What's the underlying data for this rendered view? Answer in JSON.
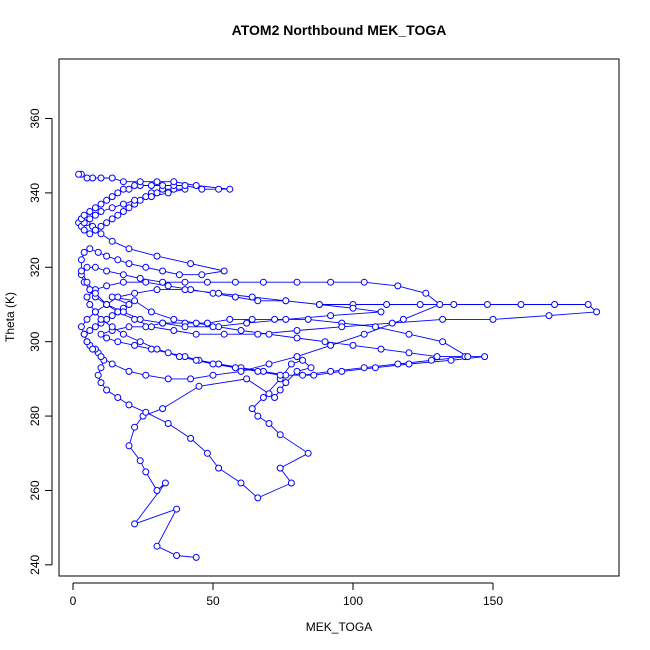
{
  "chart_data": {
    "type": "scatter",
    "title": "ATOM2 Northbound MEK_TOGA",
    "xlabel": "MEK_TOGA",
    "ylabel": "Theta (K)",
    "xlim": [
      -5,
      195
    ],
    "ylim": [
      237,
      376
    ],
    "xticks": [
      0,
      50,
      100,
      150
    ],
    "yticks": [
      240,
      260,
      280,
      300,
      320,
      340,
      360
    ],
    "grid": false,
    "legend": "none",
    "color": "#0000ff",
    "connected": true,
    "series": [
      {
        "x": [
          44,
          37,
          30,
          37,
          22,
          33,
          30,
          26,
          24,
          20,
          22,
          25,
          32,
          45,
          62,
          70,
          72,
          74,
          76,
          80,
          85,
          82,
          78,
          74,
          68,
          64,
          66,
          70,
          74,
          84,
          74,
          78,
          66,
          60,
          52,
          48,
          42,
          34,
          26,
          20,
          16,
          12,
          10,
          9,
          10,
          11,
          9,
          8,
          6,
          5,
          4,
          6,
          8,
          10,
          12,
          14,
          16,
          18,
          20,
          14,
          22,
          28,
          36,
          44,
          52,
          60,
          70,
          80,
          90,
          100,
          110,
          120,
          130,
          140,
          147,
          135,
          120,
          108,
          96,
          86,
          76,
          68,
          60,
          52,
          45,
          40,
          34,
          28,
          22,
          16,
          12,
          10,
          14,
          20,
          26,
          32,
          40,
          48,
          56,
          64,
          72,
          84,
          96,
          108,
          120,
          132,
          141,
          128,
          116,
          104,
          92,
          82,
          74,
          66,
          58,
          50,
          44,
          38,
          30,
          24,
          18,
          14,
          10,
          8,
          6,
          5,
          8,
          12,
          18,
          26,
          34,
          42,
          50,
          58,
          66,
          76,
          88,
          100,
          112,
          124,
          136,
          148,
          160,
          172,
          184,
          187,
          170,
          150,
          132,
          114,
          96,
          80,
          66,
          54,
          44,
          36,
          28,
          22,
          16,
          12,
          8,
          6,
          4,
          3,
          5,
          8,
          12,
          18,
          24,
          32,
          40,
          48,
          58,
          68,
          80,
          92,
          104,
          116,
          126,
          131,
          118,
          104,
          92,
          80,
          70,
          60,
          50,
          42,
          34,
          26,
          20,
          14,
          10,
          7,
          5,
          4,
          3,
          5,
          8,
          12,
          16,
          22,
          30,
          40,
          52,
          64,
          76,
          88,
          100,
          110,
          92,
          76,
          62,
          50,
          40,
          32,
          24,
          18,
          12,
          8,
          5,
          3,
          3,
          4,
          6,
          9,
          12,
          16,
          20,
          26,
          32,
          38,
          46,
          54,
          42,
          30,
          20,
          14,
          10,
          7,
          5,
          3,
          2,
          3,
          4,
          6,
          8,
          10,
          12,
          14,
          16,
          18,
          20,
          22,
          24,
          26,
          28,
          30,
          32,
          36,
          40,
          34,
          28,
          22,
          18,
          14,
          10,
          8,
          6,
          4,
          3,
          4,
          6,
          8,
          10,
          12,
          14,
          16,
          18,
          20,
          22,
          24,
          28,
          32,
          36,
          40,
          46,
          52,
          56,
          44,
          36,
          30,
          24,
          18,
          14,
          10,
          7,
          5,
          3,
          2
        ],
        "y": [
          242,
          242.5,
          245,
          255,
          251,
          262,
          260,
          265,
          268,
          272,
          277,
          280,
          282,
          288,
          290,
          286,
          285,
          287,
          289,
          292,
          293,
          295,
          294,
          290,
          285,
          282,
          280,
          278,
          275,
          270,
          266,
          262,
          258,
          262,
          266,
          270,
          274,
          278,
          281,
          283,
          285,
          287,
          289,
          291,
          293,
          295,
          297,
          298,
          299,
          300,
          302,
          303,
          304,
          305,
          306,
          307,
          308,
          309,
          310,
          312,
          311,
          308,
          306,
          305,
          304,
          303,
          302,
          301,
          300,
          299,
          298,
          297,
          296,
          296,
          296,
          295,
          294,
          293,
          292,
          291,
          291,
          292,
          293,
          294,
          295,
          296,
          297,
          298,
          299,
          300,
          301,
          302,
          303,
          304,
          304,
          305,
          305,
          305,
          306,
          306,
          306,
          306,
          305,
          304,
          302,
          300,
          296,
          295,
          294,
          293,
          292,
          291,
          291,
          292,
          293,
          294,
          295,
          296,
          298,
          300,
          302,
          304,
          306,
          308,
          310,
          312,
          314,
          315,
          316,
          316,
          315,
          314,
          313,
          312,
          311,
          311,
          310,
          310,
          310,
          310,
          310,
          310,
          310,
          310,
          310,
          308,
          307,
          306,
          306,
          305,
          304,
          303,
          302,
          302,
          302,
          303,
          304,
          306,
          308,
          310,
          312,
          314,
          316,
          318,
          320,
          320,
          319,
          318,
          317,
          316,
          316,
          316,
          316,
          316,
          316,
          316,
          316,
          315,
          313,
          310,
          306,
          302,
          299,
          296,
          294,
          292,
          291,
          290,
          290,
          291,
          292,
          294,
          296,
          298,
          300,
          302,
          304,
          306,
          308,
          310,
          312,
          313,
          314,
          314,
          313,
          312,
          311,
          310,
          309,
          308,
          307,
          306,
          305,
          304,
          304,
          305,
          306,
          308,
          310,
          313,
          316,
          319,
          322,
          324,
          325,
          324,
          323,
          322,
          321,
          320,
          319,
          318,
          318,
          319,
          321,
          323,
          325,
          327,
          329,
          331,
          332,
          333,
          332,
          331,
          330,
          329,
          330,
          331,
          332,
          333,
          334,
          335,
          336,
          337,
          338,
          339,
          340,
          340,
          341,
          341,
          341,
          340,
          339,
          338,
          337,
          336,
          335,
          334,
          333,
          332,
          333,
          334,
          335,
          336,
          337,
          338,
          339,
          340,
          341,
          341,
          342,
          342,
          342,
          342,
          342,
          342,
          341,
          341,
          341,
          342,
          343,
          343,
          343,
          343,
          344,
          344,
          344,
          344,
          345,
          345
        ]
      }
    ]
  }
}
